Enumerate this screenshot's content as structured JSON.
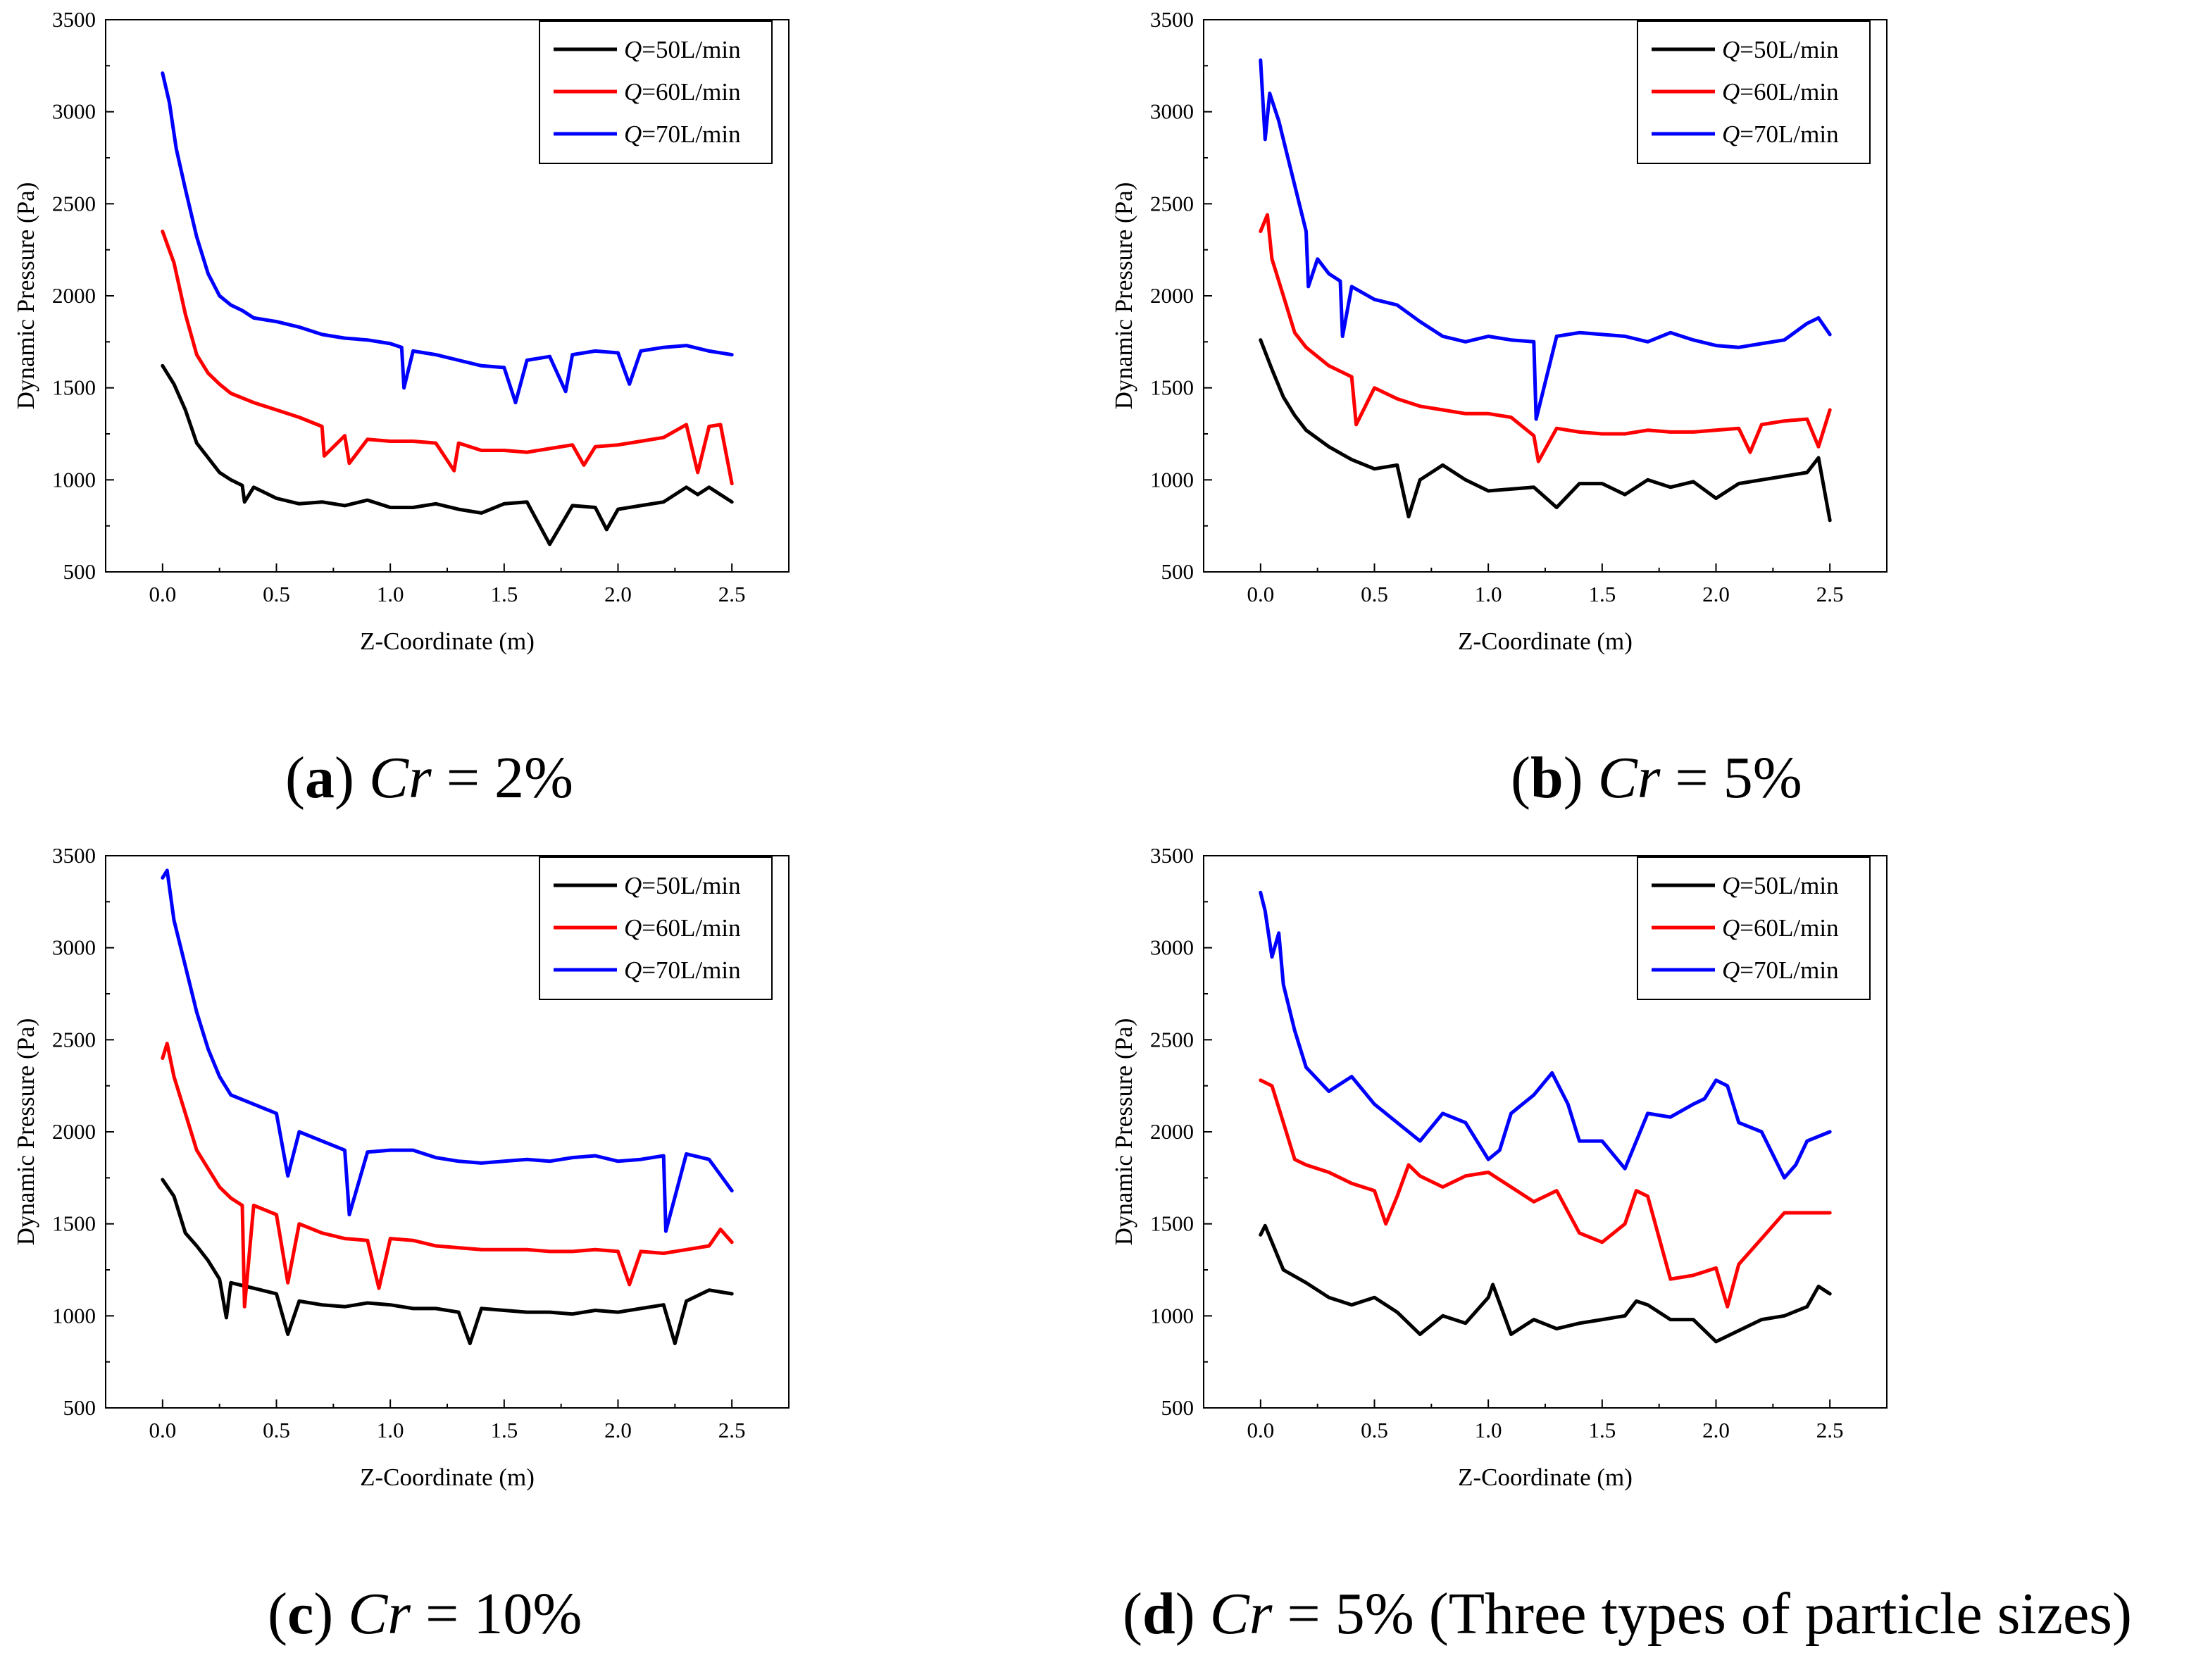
{
  "chart_data": [
    {
      "id": "a",
      "type": "line",
      "caption": {
        "label": "a",
        "var": "Cr",
        "rest": " = 2%"
      },
      "xlabel": "Z-Coordinate (m)",
      "ylabel": "Dynamic Pressure (Pa)",
      "xlim": [
        -0.25,
        2.75
      ],
      "ylim": [
        500,
        3500
      ],
      "xticks": [
        "0.0",
        "0.5",
        "1.0",
        "1.5",
        "2.0",
        "2.5"
      ],
      "yticks": [
        "500",
        "1000",
        "1500",
        "2000",
        "2500",
        "3000",
        "3500"
      ],
      "legend_position": "top-right",
      "series": [
        {
          "name": "Q=50L/min",
          "q": "Q",
          "rest": "=50L/min",
          "color": "#000000",
          "x": [
            0.0,
            0.05,
            0.1,
            0.15,
            0.2,
            0.25,
            0.3,
            0.35,
            0.36,
            0.4,
            0.5,
            0.6,
            0.7,
            0.8,
            0.9,
            1.0,
            1.1,
            1.2,
            1.3,
            1.4,
            1.5,
            1.6,
            1.7,
            1.8,
            1.9,
            1.95,
            2.0,
            2.1,
            2.2,
            2.3,
            2.35,
            2.4,
            2.5
          ],
          "y": [
            1620,
            1520,
            1380,
            1200,
            1120,
            1040,
            1000,
            970,
            880,
            960,
            900,
            870,
            880,
            860,
            890,
            850,
            850,
            870,
            840,
            820,
            870,
            880,
            650,
            860,
            850,
            730,
            840,
            860,
            880,
            960,
            920,
            960,
            880
          ]
        },
        {
          "name": "Q=60L/min",
          "q": "Q",
          "rest": "=60L/min",
          "color": "#ff0000",
          "x": [
            0.0,
            0.05,
            0.1,
            0.15,
            0.2,
            0.25,
            0.3,
            0.4,
            0.5,
            0.6,
            0.7,
            0.71,
            0.8,
            0.82,
            0.9,
            1.0,
            1.1,
            1.2,
            1.28,
            1.3,
            1.4,
            1.5,
            1.6,
            1.7,
            1.8,
            1.85,
            1.9,
            2.0,
            2.1,
            2.2,
            2.3,
            2.35,
            2.4,
            2.45,
            2.5
          ],
          "y": [
            2350,
            2180,
            1900,
            1680,
            1580,
            1520,
            1470,
            1420,
            1380,
            1340,
            1290,
            1130,
            1240,
            1090,
            1220,
            1210,
            1210,
            1200,
            1050,
            1200,
            1160,
            1160,
            1150,
            1170,
            1190,
            1080,
            1180,
            1190,
            1210,
            1230,
            1300,
            1040,
            1290,
            1300,
            980
          ]
        },
        {
          "name": "Q=70L/min",
          "q": "Q",
          "rest": "=70L/min",
          "color": "#0000ff",
          "x": [
            0.0,
            0.03,
            0.06,
            0.1,
            0.15,
            0.2,
            0.25,
            0.3,
            0.35,
            0.4,
            0.5,
            0.6,
            0.7,
            0.8,
            0.9,
            1.0,
            1.05,
            1.06,
            1.1,
            1.2,
            1.3,
            1.4,
            1.5,
            1.55,
            1.6,
            1.7,
            1.77,
            1.8,
            1.9,
            2.0,
            2.05,
            2.1,
            2.2,
            2.3,
            2.4,
            2.5
          ],
          "y": [
            3210,
            3050,
            2800,
            2580,
            2320,
            2120,
            2000,
            1950,
            1920,
            1880,
            1860,
            1830,
            1790,
            1770,
            1760,
            1740,
            1720,
            1500,
            1700,
            1680,
            1650,
            1620,
            1610,
            1420,
            1650,
            1670,
            1480,
            1680,
            1700,
            1690,
            1520,
            1700,
            1720,
            1730,
            1700,
            1680
          ]
        }
      ]
    },
    {
      "id": "b",
      "type": "line",
      "caption": {
        "label": "b",
        "var": "Cr",
        "rest": " = 5%"
      },
      "xlabel": "Z-Coordinate (m)",
      "ylabel": "Dynamic Pressure (Pa)",
      "xlim": [
        -0.25,
        2.75
      ],
      "ylim": [
        500,
        3500
      ],
      "xticks": [
        "0.0",
        "0.5",
        "1.0",
        "1.5",
        "2.0",
        "2.5"
      ],
      "yticks": [
        "500",
        "1000",
        "1500",
        "2000",
        "2500",
        "3000",
        "3500"
      ],
      "legend_position": "top-right",
      "series": [
        {
          "name": "Q=50L/min",
          "q": "Q",
          "rest": "=50L/min",
          "color": "#000000",
          "x": [
            0.0,
            0.05,
            0.1,
            0.15,
            0.2,
            0.3,
            0.4,
            0.5,
            0.6,
            0.65,
            0.7,
            0.8,
            0.9,
            1.0,
            1.1,
            1.2,
            1.3,
            1.4,
            1.5,
            1.6,
            1.7,
            1.8,
            1.9,
            2.0,
            2.1,
            2.2,
            2.3,
            2.4,
            2.45,
            2.5
          ],
          "y": [
            1760,
            1600,
            1450,
            1350,
            1270,
            1180,
            1110,
            1060,
            1080,
            800,
            1000,
            1080,
            1000,
            940,
            950,
            960,
            850,
            980,
            980,
            920,
            1000,
            960,
            990,
            900,
            980,
            1000,
            1020,
            1040,
            1120,
            780
          ]
        },
        {
          "name": "Q=60L/min",
          "q": "Q",
          "rest": "=60L/min",
          "color": "#ff0000",
          "x": [
            0.0,
            0.03,
            0.05,
            0.1,
            0.15,
            0.2,
            0.3,
            0.4,
            0.42,
            0.5,
            0.6,
            0.7,
            0.8,
            0.9,
            1.0,
            1.1,
            1.2,
            1.22,
            1.3,
            1.4,
            1.5,
            1.6,
            1.7,
            1.8,
            1.9,
            2.0,
            2.1,
            2.15,
            2.2,
            2.3,
            2.4,
            2.45,
            2.5
          ],
          "y": [
            2350,
            2440,
            2200,
            2000,
            1800,
            1720,
            1620,
            1560,
            1300,
            1500,
            1440,
            1400,
            1380,
            1360,
            1360,
            1340,
            1240,
            1100,
            1280,
            1260,
            1250,
            1250,
            1270,
            1260,
            1260,
            1270,
            1280,
            1150,
            1300,
            1320,
            1330,
            1180,
            1380
          ]
        },
        {
          "name": "Q=70L/min",
          "q": "Q",
          "rest": "=70L/min",
          "color": "#0000ff",
          "x": [
            0.0,
            0.02,
            0.04,
            0.08,
            0.12,
            0.16,
            0.2,
            0.21,
            0.25,
            0.3,
            0.35,
            0.36,
            0.4,
            0.5,
            0.6,
            0.7,
            0.8,
            0.9,
            1.0,
            1.1,
            1.2,
            1.21,
            1.3,
            1.4,
            1.5,
            1.6,
            1.7,
            1.8,
            1.9,
            2.0,
            2.1,
            2.2,
            2.3,
            2.4,
            2.45,
            2.5
          ],
          "y": [
            3280,
            2850,
            3100,
            2950,
            2750,
            2550,
            2350,
            2050,
            2200,
            2120,
            2080,
            1780,
            2050,
            1980,
            1950,
            1860,
            1780,
            1750,
            1780,
            1760,
            1750,
            1330,
            1780,
            1800,
            1790,
            1780,
            1750,
            1800,
            1760,
            1730,
            1720,
            1740,
            1760,
            1850,
            1880,
            1790
          ]
        }
      ]
    },
    {
      "id": "c",
      "type": "line",
      "caption": {
        "label": "c",
        "var": "Cr",
        "rest": " = 10%"
      },
      "xlabel": "Z-Coordinate (m)",
      "ylabel": "Dynamic Pressure (Pa)",
      "xlim": [
        -0.25,
        2.75
      ],
      "ylim": [
        500,
        3500
      ],
      "xticks": [
        "0.0",
        "0.5",
        "1.0",
        "1.5",
        "2.0",
        "2.5"
      ],
      "yticks": [
        "500",
        "1000",
        "1500",
        "2000",
        "2500",
        "3000",
        "3500"
      ],
      "legend_position": "top-right",
      "series": [
        {
          "name": "Q=50L/min",
          "q": "Q",
          "rest": "=50L/min",
          "color": "#000000",
          "x": [
            0.0,
            0.05,
            0.1,
            0.15,
            0.2,
            0.25,
            0.28,
            0.3,
            0.4,
            0.5,
            0.55,
            0.6,
            0.7,
            0.8,
            0.9,
            1.0,
            1.1,
            1.2,
            1.3,
            1.35,
            1.4,
            1.5,
            1.6,
            1.7,
            1.8,
            1.9,
            2.0,
            2.1,
            2.2,
            2.25,
            2.3,
            2.4,
            2.5
          ],
          "y": [
            1740,
            1650,
            1450,
            1380,
            1300,
            1200,
            990,
            1180,
            1150,
            1120,
            900,
            1080,
            1060,
            1050,
            1070,
            1060,
            1040,
            1040,
            1020,
            850,
            1040,
            1030,
            1020,
            1020,
            1010,
            1030,
            1020,
            1040,
            1060,
            850,
            1080,
            1140,
            1120
          ]
        },
        {
          "name": "Q=60L/min",
          "q": "Q",
          "rest": "=60L/min",
          "color": "#ff0000",
          "x": [
            0.0,
            0.02,
            0.05,
            0.1,
            0.15,
            0.2,
            0.25,
            0.3,
            0.35,
            0.36,
            0.4,
            0.5,
            0.55,
            0.6,
            0.7,
            0.8,
            0.9,
            0.95,
            1.0,
            1.1,
            1.2,
            1.3,
            1.4,
            1.5,
            1.6,
            1.7,
            1.8,
            1.9,
            2.0,
            2.05,
            2.1,
            2.2,
            2.3,
            2.4,
            2.45,
            2.5
          ],
          "y": [
            2400,
            2480,
            2300,
            2100,
            1900,
            1800,
            1700,
            1640,
            1600,
            1050,
            1600,
            1550,
            1180,
            1500,
            1450,
            1420,
            1410,
            1150,
            1420,
            1410,
            1380,
            1370,
            1360,
            1360,
            1360,
            1350,
            1350,
            1360,
            1350,
            1170,
            1350,
            1340,
            1360,
            1380,
            1470,
            1400
          ]
        },
        {
          "name": "Q=70L/min",
          "q": "Q",
          "rest": "=70L/min",
          "color": "#0000ff",
          "x": [
            0.0,
            0.02,
            0.05,
            0.1,
            0.15,
            0.2,
            0.25,
            0.3,
            0.4,
            0.5,
            0.55,
            0.6,
            0.7,
            0.8,
            0.82,
            0.9,
            1.0,
            1.1,
            1.2,
            1.3,
            1.4,
            1.5,
            1.6,
            1.7,
            1.8,
            1.9,
            2.0,
            2.1,
            2.2,
            2.21,
            2.3,
            2.4,
            2.5
          ],
          "y": [
            3380,
            3420,
            3150,
            2900,
            2650,
            2450,
            2300,
            2200,
            2150,
            2100,
            1760,
            2000,
            1950,
            1900,
            1550,
            1890,
            1900,
            1900,
            1860,
            1840,
            1830,
            1840,
            1850,
            1840,
            1860,
            1870,
            1840,
            1850,
            1870,
            1460,
            1880,
            1850,
            1680
          ]
        }
      ]
    },
    {
      "id": "d",
      "type": "line",
      "caption": {
        "label": "d",
        "var": "Cr",
        "rest": " = 5% (Three types of particle sizes)"
      },
      "xlabel": "Z-Coordinate (m)",
      "ylabel": "Dynamic Pressure (Pa)",
      "xlim": [
        -0.25,
        2.75
      ],
      "ylim": [
        500,
        3500
      ],
      "xticks": [
        "0.0",
        "0.5",
        "1.0",
        "1.5",
        "2.0",
        "2.5"
      ],
      "yticks": [
        "500",
        "1000",
        "1500",
        "2000",
        "2500",
        "3000",
        "3500"
      ],
      "legend_position": "top-right",
      "series": [
        {
          "name": "Q=50L/min",
          "q": "Q",
          "rest": "=50L/min",
          "color": "#000000",
          "x": [
            0.0,
            0.02,
            0.05,
            0.1,
            0.2,
            0.3,
            0.4,
            0.5,
            0.6,
            0.7,
            0.8,
            0.9,
            1.0,
            1.02,
            1.1,
            1.2,
            1.3,
            1.4,
            1.5,
            1.6,
            1.65,
            1.7,
            1.8,
            1.9,
            2.0,
            2.1,
            2.2,
            2.3,
            2.4,
            2.45,
            2.5
          ],
          "y": [
            1440,
            1490,
            1400,
            1250,
            1180,
            1100,
            1060,
            1100,
            1020,
            900,
            1000,
            960,
            1100,
            1170,
            900,
            980,
            930,
            960,
            980,
            1000,
            1080,
            1060,
            980,
            980,
            860,
            920,
            980,
            1000,
            1050,
            1160,
            1120
          ]
        },
        {
          "name": "Q=60L/min",
          "q": "Q",
          "rest": "=60L/min",
          "color": "#ff0000",
          "x": [
            0.0,
            0.05,
            0.1,
            0.15,
            0.2,
            0.3,
            0.4,
            0.5,
            0.55,
            0.6,
            0.65,
            0.7,
            0.8,
            0.9,
            1.0,
            1.1,
            1.2,
            1.3,
            1.4,
            1.5,
            1.6,
            1.65,
            1.7,
            1.8,
            1.9,
            2.0,
            2.05,
            2.1,
            2.2,
            2.3,
            2.4,
            2.5
          ],
          "y": [
            2280,
            2250,
            2050,
            1850,
            1820,
            1780,
            1720,
            1680,
            1500,
            1650,
            1820,
            1760,
            1700,
            1760,
            1780,
            1700,
            1620,
            1680,
            1450,
            1400,
            1500,
            1680,
            1650,
            1200,
            1220,
            1260,
            1050,
            1280,
            1420,
            1560,
            1560,
            1560
          ]
        },
        {
          "name": "Q=70L/min",
          "q": "Q",
          "rest": "=70L/min",
          "color": "#0000ff",
          "x": [
            0.0,
            0.02,
            0.05,
            0.08,
            0.1,
            0.15,
            0.2,
            0.3,
            0.4,
            0.5,
            0.6,
            0.7,
            0.8,
            0.9,
            1.0,
            1.05,
            1.1,
            1.2,
            1.28,
            1.35,
            1.4,
            1.5,
            1.6,
            1.7,
            1.8,
            1.9,
            1.95,
            2.0,
            2.05,
            2.1,
            2.2,
            2.3,
            2.35,
            2.4,
            2.5
          ],
          "y": [
            3300,
            3200,
            2950,
            3080,
            2800,
            2550,
            2350,
            2220,
            2300,
            2150,
            2050,
            1950,
            2100,
            2050,
            1850,
            1900,
            2100,
            2200,
            2320,
            2150,
            1950,
            1950,
            1800,
            2100,
            2080,
            2150,
            2180,
            2280,
            2250,
            2050,
            2000,
            1750,
            1820,
            1950,
            2000
          ]
        }
      ]
    }
  ]
}
